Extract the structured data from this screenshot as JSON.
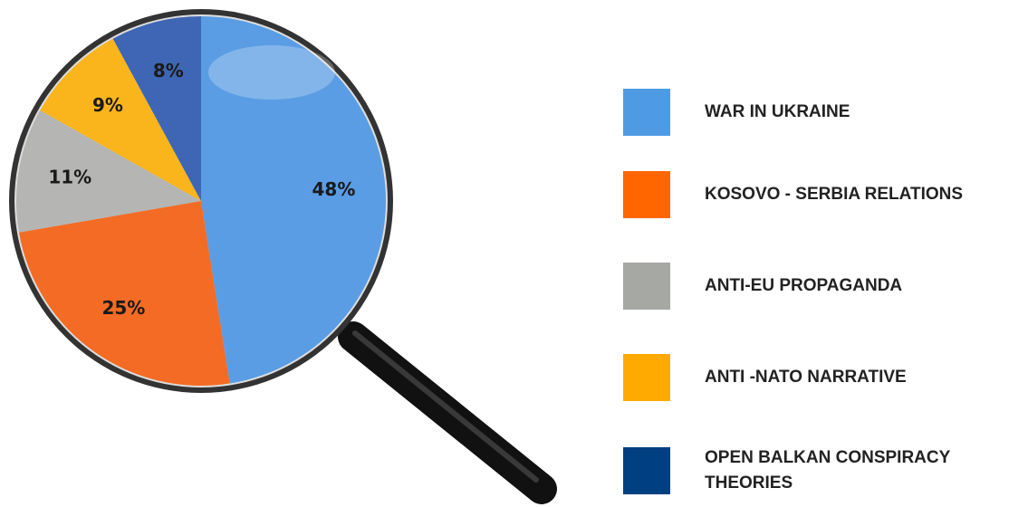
{
  "chart_data": {
    "type": "pie",
    "categories": [
      "WAR IN UKRAINE",
      "KOSOVO - SERBIA RELATIONS",
      "ANTI-EU PROPAGANDA",
      "ANTI -NATO NARRATIVE",
      "OPEN BALKAN CONSPIRACY THEORIES"
    ],
    "values": [
      48,
      25,
      11,
      9,
      8
    ],
    "value_labels": [
      "48%",
      "25%",
      "11%",
      "9%",
      "8%"
    ],
    "colors": [
      "#5a9de4",
      "#f36b24",
      "#b5b5b3",
      "#fab51c",
      "#3f66b4"
    ],
    "legend_colors": [
      "#4f9be3",
      "#ff6600",
      "#a5a8a3",
      "#ffaa00",
      "#003f80"
    ]
  }
}
